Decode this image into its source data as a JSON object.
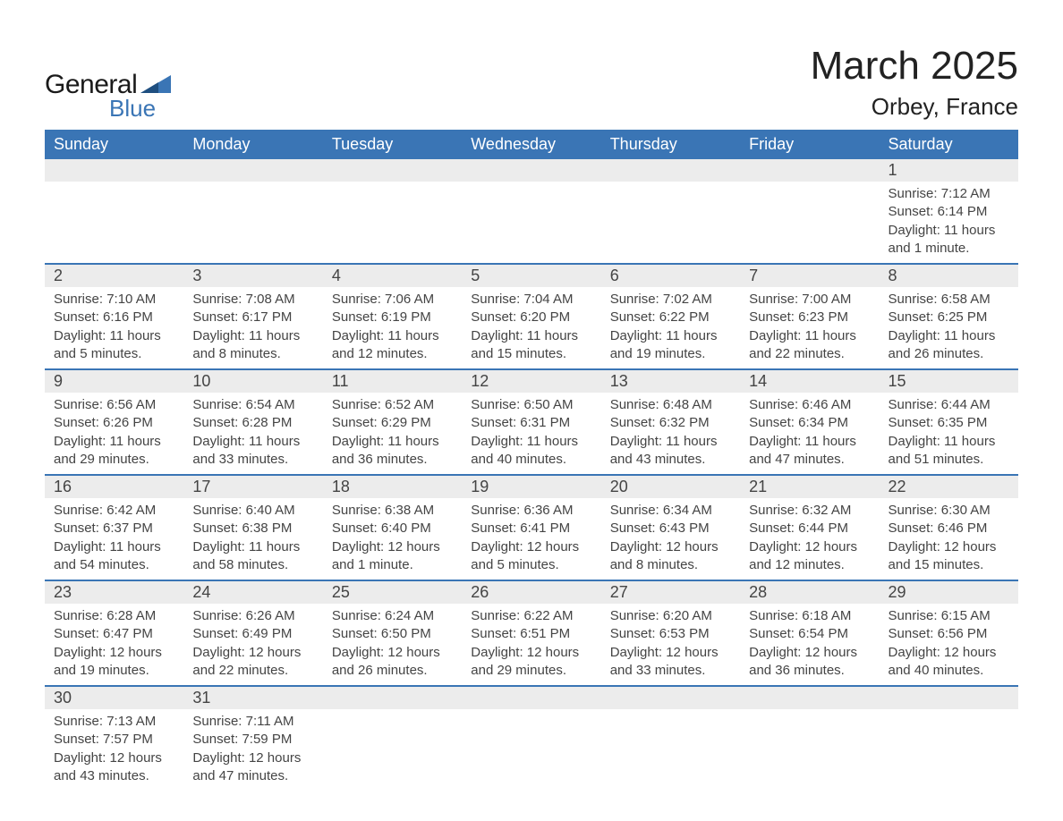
{
  "brand": {
    "general": "General",
    "blue": "Blue"
  },
  "title": {
    "month": "March 2025",
    "location": "Orbey, France"
  },
  "style": {
    "header_bg": "#3a75b5",
    "header_text": "#ffffff",
    "daynum_bg": "#ececec",
    "row_divider": "#3a75b5",
    "text_color": "#444444",
    "title_fontsize": 44,
    "location_fontsize": 26,
    "dayhead_fontsize": 18,
    "daynum_fontsize": 18,
    "body_fontsize": 15,
    "page_bg": "#ffffff"
  },
  "day_headers": [
    "Sunday",
    "Monday",
    "Tuesday",
    "Wednesday",
    "Thursday",
    "Friday",
    "Saturday"
  ],
  "weeks": [
    [
      {
        "n": "",
        "sunrise": "",
        "sunset": "",
        "daylight": "",
        "empty": true
      },
      {
        "n": "",
        "sunrise": "",
        "sunset": "",
        "daylight": "",
        "empty": true
      },
      {
        "n": "",
        "sunrise": "",
        "sunset": "",
        "daylight": "",
        "empty": true
      },
      {
        "n": "",
        "sunrise": "",
        "sunset": "",
        "daylight": "",
        "empty": true
      },
      {
        "n": "",
        "sunrise": "",
        "sunset": "",
        "daylight": "",
        "empty": true
      },
      {
        "n": "",
        "sunrise": "",
        "sunset": "",
        "daylight": "",
        "empty": true
      },
      {
        "n": "1",
        "sunrise": "Sunrise: 7:12 AM",
        "sunset": "Sunset: 6:14 PM",
        "daylight": "Daylight: 11 hours and 1 minute."
      }
    ],
    [
      {
        "n": "2",
        "sunrise": "Sunrise: 7:10 AM",
        "sunset": "Sunset: 6:16 PM",
        "daylight": "Daylight: 11 hours and 5 minutes."
      },
      {
        "n": "3",
        "sunrise": "Sunrise: 7:08 AM",
        "sunset": "Sunset: 6:17 PM",
        "daylight": "Daylight: 11 hours and 8 minutes."
      },
      {
        "n": "4",
        "sunrise": "Sunrise: 7:06 AM",
        "sunset": "Sunset: 6:19 PM",
        "daylight": "Daylight: 11 hours and 12 minutes."
      },
      {
        "n": "5",
        "sunrise": "Sunrise: 7:04 AM",
        "sunset": "Sunset: 6:20 PM",
        "daylight": "Daylight: 11 hours and 15 minutes."
      },
      {
        "n": "6",
        "sunrise": "Sunrise: 7:02 AM",
        "sunset": "Sunset: 6:22 PM",
        "daylight": "Daylight: 11 hours and 19 minutes."
      },
      {
        "n": "7",
        "sunrise": "Sunrise: 7:00 AM",
        "sunset": "Sunset: 6:23 PM",
        "daylight": "Daylight: 11 hours and 22 minutes."
      },
      {
        "n": "8",
        "sunrise": "Sunrise: 6:58 AM",
        "sunset": "Sunset: 6:25 PM",
        "daylight": "Daylight: 11 hours and 26 minutes."
      }
    ],
    [
      {
        "n": "9",
        "sunrise": "Sunrise: 6:56 AM",
        "sunset": "Sunset: 6:26 PM",
        "daylight": "Daylight: 11 hours and 29 minutes."
      },
      {
        "n": "10",
        "sunrise": "Sunrise: 6:54 AM",
        "sunset": "Sunset: 6:28 PM",
        "daylight": "Daylight: 11 hours and 33 minutes."
      },
      {
        "n": "11",
        "sunrise": "Sunrise: 6:52 AM",
        "sunset": "Sunset: 6:29 PM",
        "daylight": "Daylight: 11 hours and 36 minutes."
      },
      {
        "n": "12",
        "sunrise": "Sunrise: 6:50 AM",
        "sunset": "Sunset: 6:31 PM",
        "daylight": "Daylight: 11 hours and 40 minutes."
      },
      {
        "n": "13",
        "sunrise": "Sunrise: 6:48 AM",
        "sunset": "Sunset: 6:32 PM",
        "daylight": "Daylight: 11 hours and 43 minutes."
      },
      {
        "n": "14",
        "sunrise": "Sunrise: 6:46 AM",
        "sunset": "Sunset: 6:34 PM",
        "daylight": "Daylight: 11 hours and 47 minutes."
      },
      {
        "n": "15",
        "sunrise": "Sunrise: 6:44 AM",
        "sunset": "Sunset: 6:35 PM",
        "daylight": "Daylight: 11 hours and 51 minutes."
      }
    ],
    [
      {
        "n": "16",
        "sunrise": "Sunrise: 6:42 AM",
        "sunset": "Sunset: 6:37 PM",
        "daylight": "Daylight: 11 hours and 54 minutes."
      },
      {
        "n": "17",
        "sunrise": "Sunrise: 6:40 AM",
        "sunset": "Sunset: 6:38 PM",
        "daylight": "Daylight: 11 hours and 58 minutes."
      },
      {
        "n": "18",
        "sunrise": "Sunrise: 6:38 AM",
        "sunset": "Sunset: 6:40 PM",
        "daylight": "Daylight: 12 hours and 1 minute."
      },
      {
        "n": "19",
        "sunrise": "Sunrise: 6:36 AM",
        "sunset": "Sunset: 6:41 PM",
        "daylight": "Daylight: 12 hours and 5 minutes."
      },
      {
        "n": "20",
        "sunrise": "Sunrise: 6:34 AM",
        "sunset": "Sunset: 6:43 PM",
        "daylight": "Daylight: 12 hours and 8 minutes."
      },
      {
        "n": "21",
        "sunrise": "Sunrise: 6:32 AM",
        "sunset": "Sunset: 6:44 PM",
        "daylight": "Daylight: 12 hours and 12 minutes."
      },
      {
        "n": "22",
        "sunrise": "Sunrise: 6:30 AM",
        "sunset": "Sunset: 6:46 PM",
        "daylight": "Daylight: 12 hours and 15 minutes."
      }
    ],
    [
      {
        "n": "23",
        "sunrise": "Sunrise: 6:28 AM",
        "sunset": "Sunset: 6:47 PM",
        "daylight": "Daylight: 12 hours and 19 minutes."
      },
      {
        "n": "24",
        "sunrise": "Sunrise: 6:26 AM",
        "sunset": "Sunset: 6:49 PM",
        "daylight": "Daylight: 12 hours and 22 minutes."
      },
      {
        "n": "25",
        "sunrise": "Sunrise: 6:24 AM",
        "sunset": "Sunset: 6:50 PM",
        "daylight": "Daylight: 12 hours and 26 minutes."
      },
      {
        "n": "26",
        "sunrise": "Sunrise: 6:22 AM",
        "sunset": "Sunset: 6:51 PM",
        "daylight": "Daylight: 12 hours and 29 minutes."
      },
      {
        "n": "27",
        "sunrise": "Sunrise: 6:20 AM",
        "sunset": "Sunset: 6:53 PM",
        "daylight": "Daylight: 12 hours and 33 minutes."
      },
      {
        "n": "28",
        "sunrise": "Sunrise: 6:18 AM",
        "sunset": "Sunset: 6:54 PM",
        "daylight": "Daylight: 12 hours and 36 minutes."
      },
      {
        "n": "29",
        "sunrise": "Sunrise: 6:15 AM",
        "sunset": "Sunset: 6:56 PM",
        "daylight": "Daylight: 12 hours and 40 minutes."
      }
    ],
    [
      {
        "n": "30",
        "sunrise": "Sunrise: 7:13 AM",
        "sunset": "Sunset: 7:57 PM",
        "daylight": "Daylight: 12 hours and 43 minutes."
      },
      {
        "n": "31",
        "sunrise": "Sunrise: 7:11 AM",
        "sunset": "Sunset: 7:59 PM",
        "daylight": "Daylight: 12 hours and 47 minutes."
      },
      {
        "n": "",
        "sunrise": "",
        "sunset": "",
        "daylight": "",
        "empty": true
      },
      {
        "n": "",
        "sunrise": "",
        "sunset": "",
        "daylight": "",
        "empty": true
      },
      {
        "n": "",
        "sunrise": "",
        "sunset": "",
        "daylight": "",
        "empty": true
      },
      {
        "n": "",
        "sunrise": "",
        "sunset": "",
        "daylight": "",
        "empty": true
      },
      {
        "n": "",
        "sunrise": "",
        "sunset": "",
        "daylight": "",
        "empty": true
      }
    ]
  ]
}
